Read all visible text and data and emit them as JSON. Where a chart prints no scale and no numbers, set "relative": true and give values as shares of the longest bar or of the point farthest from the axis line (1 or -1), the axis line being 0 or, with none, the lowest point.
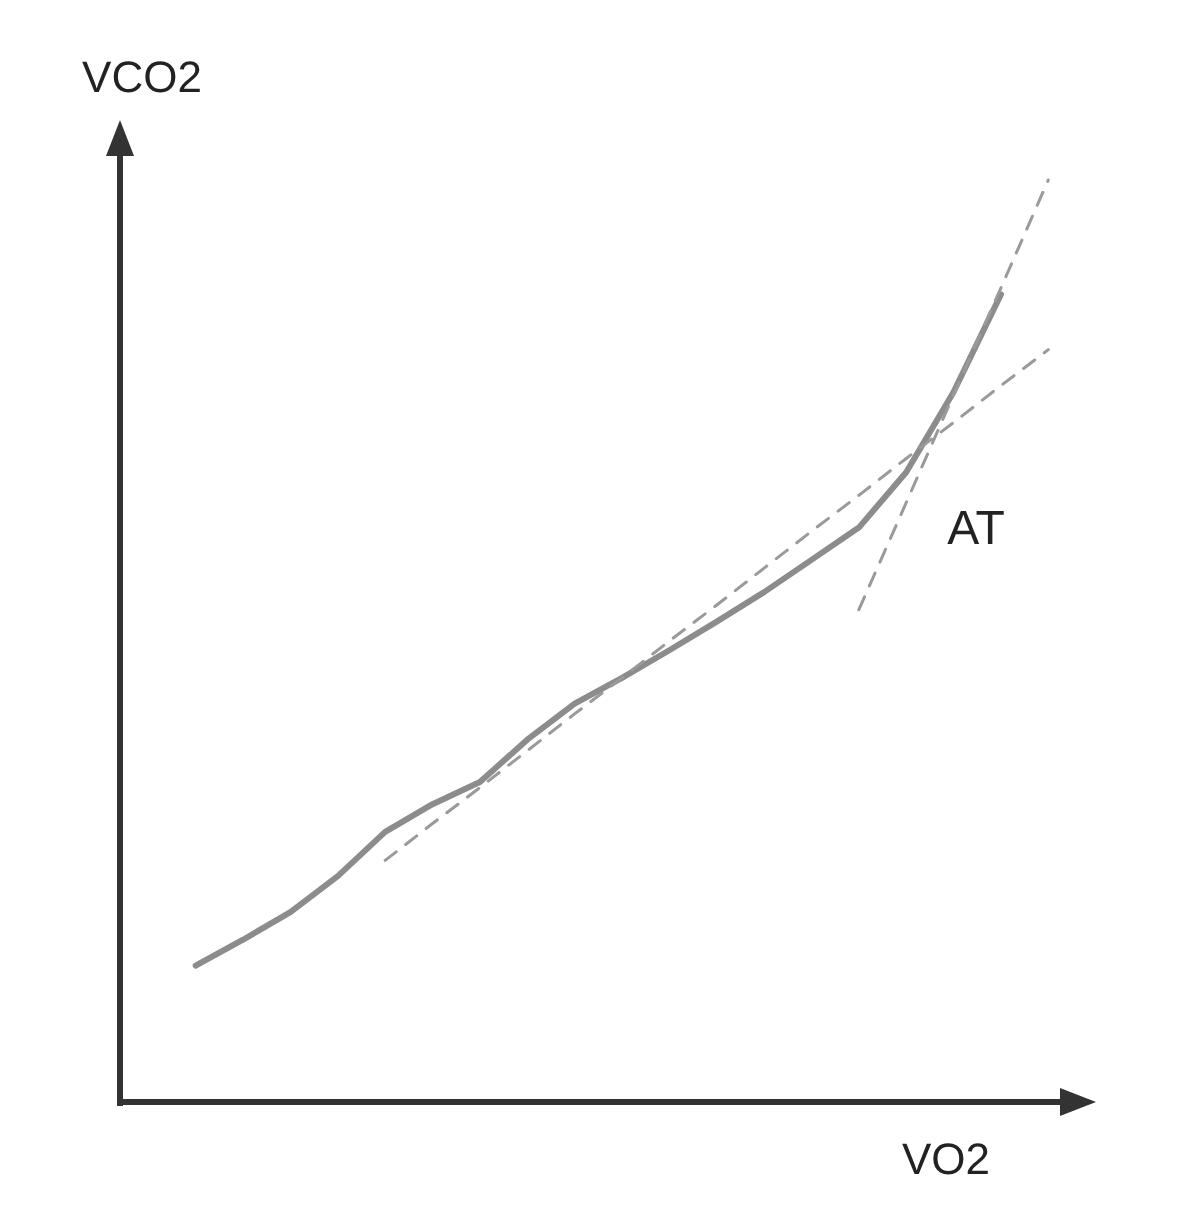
{
  "chart_data": {
    "type": "line",
    "relative": true,
    "xlabel": "VO2",
    "ylabel": "VCO2",
    "categories": [
      null,
      null,
      null,
      null,
      null,
      null,
      null,
      null,
      null,
      null,
      null,
      null,
      null,
      null,
      null,
      null,
      null,
      null,
      null
    ],
    "series": [
      {
        "color": "#8c8c8c",
        "line_style": "solid",
        "values": [
          0.148,
          0.176,
          0.206,
          0.245,
          0.293,
          0.323,
          0.347,
          0.393,
          0.432,
          0.46,
          0.49,
          0.521,
          0.553,
          0.588,
          0.623,
          0.683,
          0.77,
          0.876,
          null
        ]
      },
      {
        "color": "#9a9a9a",
        "line_style": "dashed",
        "values": [
          null,
          null,
          null,
          null,
          0.262,
          0.302,
          0.341,
          0.381,
          0.421,
          0.46,
          0.5,
          0.539,
          0.579,
          0.619,
          0.658,
          0.698,
          0.737,
          0.777,
          0.816
        ]
      },
      {
        "color": "#9a9a9a",
        "line_style": "dashed",
        "values": [
          null,
          null,
          null,
          null,
          null,
          null,
          null,
          null,
          null,
          null,
          null,
          null,
          null,
          null,
          0.534,
          0.65,
          0.767,
          0.883,
          1.0
        ]
      }
    ],
    "annotations": [
      "AT"
    ],
    "grid": false,
    "tick_labels": false
  }
}
